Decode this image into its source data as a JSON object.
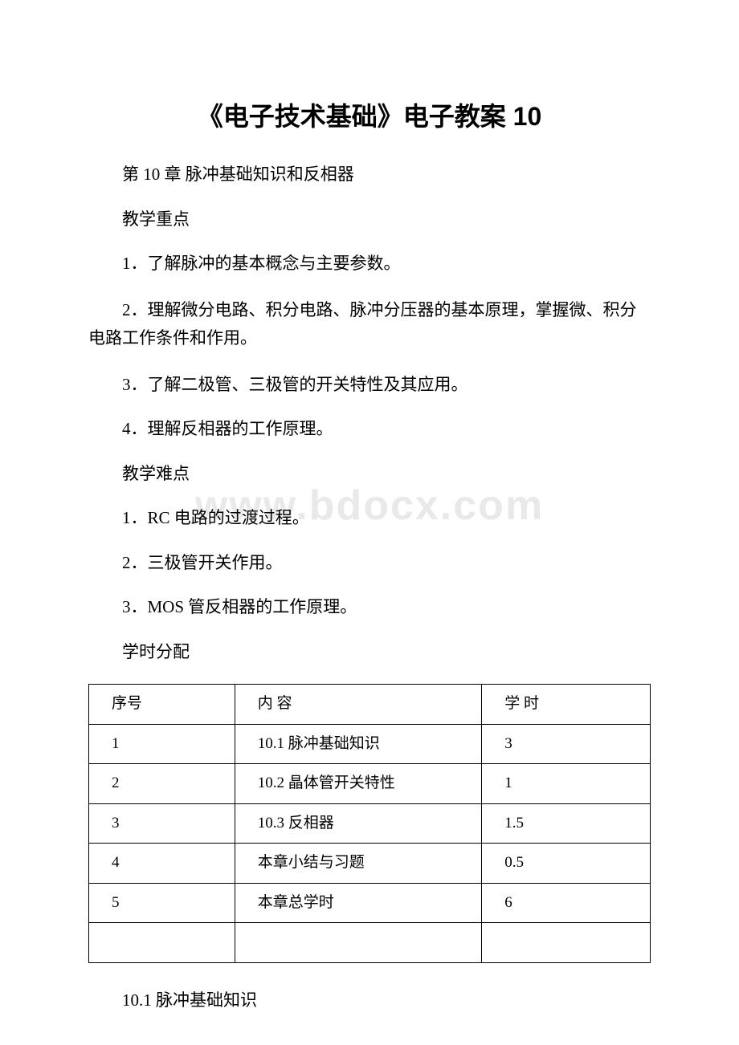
{
  "title": "《电子技术基础》电子教案 10",
  "chapter": "第 10 章 脉冲基础知识和反相器",
  "focusHeading": "教学重点",
  "focusItems": [
    "1．了解脉冲的基本概念与主要参数。",
    "2．理解微分电路、积分电路、脉冲分压器的基本原理，掌握微、积分电路工作条件和作用。",
    "3．了解二极管、三极管的开关特性及其应用。",
    "4．理解反相器的工作原理。"
  ],
  "difficultyHeading": "教学难点",
  "difficultyItems": [
    "1．RC 电路的过渡过程。",
    "2．三极管开关作用。",
    "3．MOS 管反相器的工作原理。"
  ],
  "scheduleHeading": "学时分配",
  "table": {
    "columns": [
      "序号",
      "内 容",
      "学 时"
    ],
    "rows": [
      [
        "1",
        "10.1 脉冲基础知识",
        "3"
      ],
      [
        "2",
        "10.2 晶体管开关特性",
        "1"
      ],
      [
        "3",
        "10.3 反相器",
        "1.5"
      ],
      [
        "4",
        "本章小结与习题",
        "0.5"
      ],
      [
        "5",
        "本章总学时",
        "6"
      ],
      [
        "",
        "",
        ""
      ]
    ],
    "col_widths": [
      "26%",
      "44%",
      "30%"
    ],
    "border_color": "#000000",
    "font_size": 19
  },
  "bottomHeading": "10.1  脉冲基础知识",
  "watermark": "www.bdocx.com",
  "colors": {
    "text": "#000000",
    "background": "#ffffff",
    "watermark": "#e9e9e9"
  },
  "typography": {
    "title_fontsize": 32,
    "body_fontsize": 21,
    "table_fontsize": 19,
    "title_font": "SimHei",
    "body_font": "SimSun"
  }
}
